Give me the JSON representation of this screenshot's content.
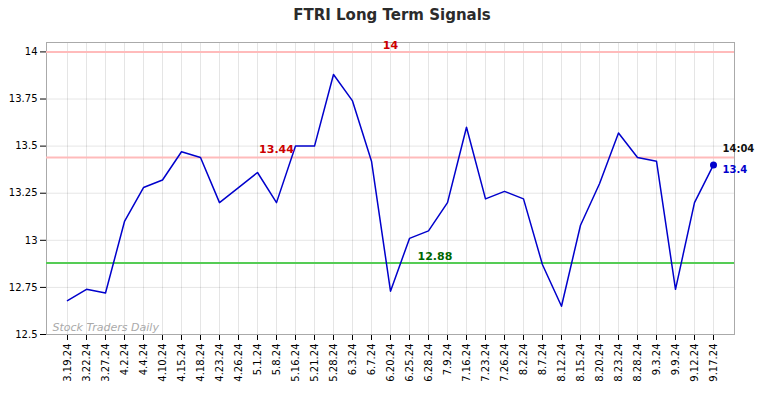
{
  "chart_data": {
    "type": "line",
    "title": "FTRI Long Term Signals",
    "title_color": "#2b2b2b",
    "categories": [
      "3.19.24",
      "3.22.24",
      "3.27.24",
      "4.2.24",
      "4.4.24",
      "4.10.24",
      "4.15.24",
      "4.18.24",
      "4.23.24",
      "4.26.24",
      "5.1.24",
      "5.8.24",
      "5.16.24",
      "5.21.24",
      "5.28.24",
      "6.3.24",
      "6.7.24",
      "6.20.24",
      "6.25.24",
      "6.28.24",
      "7.9.24",
      "7.16.24",
      "7.23.24",
      "7.26.24",
      "8.2.24",
      "8.7.24",
      "8.12.24",
      "8.15.24",
      "8.20.24",
      "8.23.24",
      "8.28.24",
      "9.3.24",
      "9.9.24",
      "9.12.24",
      "9.17.24"
    ],
    "values": [
      12.68,
      12.74,
      12.72,
      13.1,
      13.28,
      13.32,
      13.47,
      13.44,
      13.2,
      13.28,
      13.36,
      13.2,
      13.5,
      13.5,
      13.88,
      13.74,
      13.42,
      12.73,
      13.01,
      13.05,
      13.2,
      13.6,
      13.22,
      13.26,
      13.22,
      12.87,
      12.65,
      13.08,
      13.3,
      13.57,
      13.44,
      13.42,
      12.74,
      13.2,
      13.4
    ],
    "color": "#0000cc",
    "ylim": [
      12.5,
      14.05
    ],
    "yticks": [
      12.5,
      12.75,
      13,
      13.25,
      13.5,
      13.75,
      14
    ],
    "grid": true,
    "hlines": [
      {
        "value": 14,
        "color": "#ffbbbb",
        "label": "14",
        "label_color": "#cc0000"
      },
      {
        "value": 13.44,
        "color": "#ffbbbb",
        "label": "13.44",
        "label_color": "#cc0000"
      },
      {
        "value": 12.88,
        "color": "#55cc55",
        "label": "12.88",
        "label_color": "#006600"
      }
    ],
    "last_point": {
      "time_label": "14:04",
      "value_label": "13.4",
      "color": "#0000cc",
      "time_color": "#111111"
    },
    "watermark": "Stock Traders Daily"
  }
}
